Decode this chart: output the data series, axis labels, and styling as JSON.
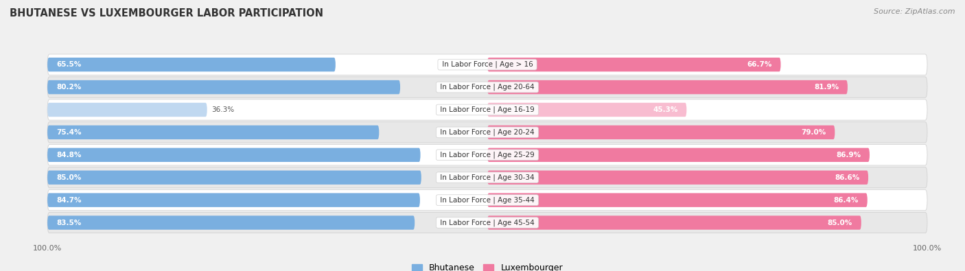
{
  "title": "BHUTANESE VS LUXEMBOURGER LABOR PARTICIPATION",
  "source": "Source: ZipAtlas.com",
  "categories": [
    "In Labor Force | Age > 16",
    "In Labor Force | Age 20-64",
    "In Labor Force | Age 16-19",
    "In Labor Force | Age 20-24",
    "In Labor Force | Age 25-29",
    "In Labor Force | Age 30-34",
    "In Labor Force | Age 35-44",
    "In Labor Force | Age 45-54"
  ],
  "bhutanese": [
    65.5,
    80.2,
    36.3,
    75.4,
    84.8,
    85.0,
    84.7,
    83.5
  ],
  "luxembourger": [
    66.7,
    81.9,
    45.3,
    79.0,
    86.9,
    86.6,
    86.4,
    85.0
  ],
  "bhutanese_color": "#7aafe0",
  "bhutanese_color_light": "#c0d8f0",
  "luxembourger_color": "#f07aa0",
  "luxembourger_color_light": "#f8bcd0",
  "bg_color": "#f0f0f0",
  "row_bg_even": "#ffffff",
  "row_bg_odd": "#e8e8e8",
  "legend_bhutanese": "Bhutanese",
  "legend_luxembourger": "Luxembourger",
  "max_val": 100.0
}
